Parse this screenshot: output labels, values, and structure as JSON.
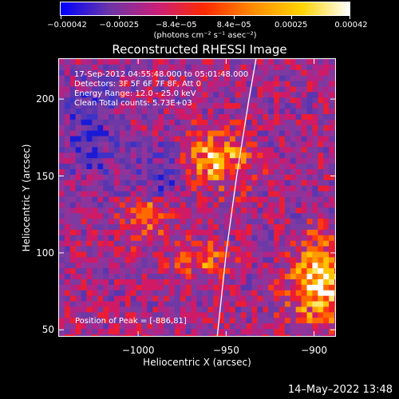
{
  "chart_data": {
    "type": "heatmap",
    "title": "Reconstructed RHESSI Image",
    "xlabel": "Heliocentric X (arcsec)",
    "ylabel": "Heliocentric Y (arcsec)",
    "xlim": [
      -1045,
      -888
    ],
    "ylim": [
      46,
      226
    ],
    "x_ticks": [
      -1000,
      -950,
      -900
    ],
    "x_tick_labels": [
      "−1000",
      "−950",
      "−900"
    ],
    "y_ticks": [
      50,
      100,
      150,
      200
    ],
    "colorbar": {
      "ticks": [
        -0.00042,
        -0.00025,
        -8.4e-05,
        8.4e-05,
        0.00025,
        0.00042
      ],
      "tick_labels": [
        "−0.00042",
        "−0.00025",
        "−8.4e−05",
        "8.4e−05",
        "0.00025",
        "0.00042"
      ],
      "units_text": "(photons cm⁻² s⁻¹ asec⁻²)",
      "colors": [
        "#0000ff",
        "#6a35a8",
        "#c8207a",
        "#ff2a00",
        "#ff8c00",
        "#ffd400",
        "#ffffff"
      ]
    },
    "annotations": [
      "17-Sep-2012 04:55:48.000 to 05:01:48.000",
      "Detectors: 3F 5F 6F 7F 8F, Att 0",
      "Energy Range: 12.0 - 25.0 keV",
      "Clean      Total counts: 5.73E+03"
    ],
    "peak_label": "Position of Peak = [-886,81]",
    "limb_curve": [
      [
        -955,
        46
      ],
      [
        -950,
        100
      ],
      [
        -944,
        150
      ],
      [
        -937,
        200
      ],
      [
        -933,
        226
      ]
    ]
  },
  "footer_date": "14–May–2022 13:48"
}
